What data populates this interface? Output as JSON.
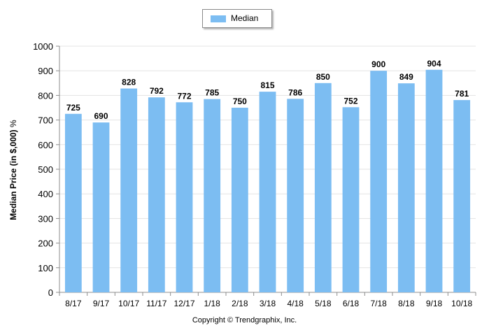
{
  "chart_data": {
    "type": "bar",
    "categories": [
      "8/17",
      "9/17",
      "10/17",
      "11/17",
      "12/17",
      "1/18",
      "2/18",
      "3/18",
      "4/18",
      "5/18",
      "6/18",
      "7/18",
      "8/18",
      "9/18",
      "10/18"
    ],
    "series": [
      {
        "name": "Median",
        "values": [
          725,
          690,
          828,
          792,
          772,
          785,
          750,
          815,
          786,
          850,
          752,
          900,
          849,
          904,
          781
        ],
        "color": "#7cbdf2"
      }
    ],
    "title": "",
    "xlabel": "",
    "ylabel": "Median Price (in $,000)",
    "ylabel_unit": "%",
    "ylim": [
      0,
      1000
    ],
    "yticks": [
      0,
      100,
      200,
      300,
      400,
      500,
      600,
      700,
      800,
      900,
      1000
    ],
    "grid": true,
    "legend_position": "top-center",
    "data_labels": true
  },
  "legend": {
    "label": "Median"
  },
  "credit": "Copyright © Trendgraphix, Inc."
}
